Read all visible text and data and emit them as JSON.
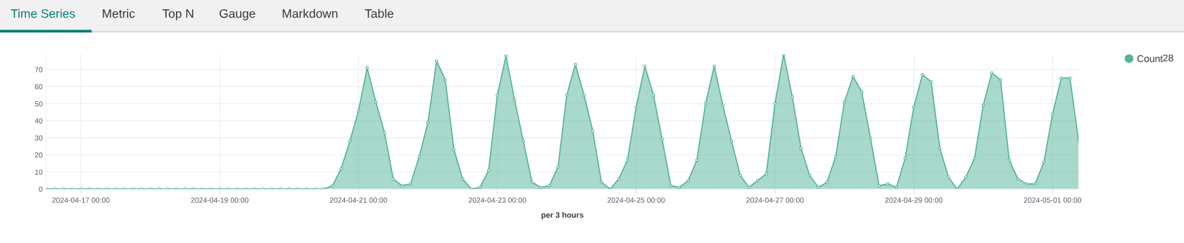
{
  "chart_data": {
    "type": "area",
    "annotations": [
      "Time Series",
      "Metric",
      "Top N",
      "Gauge",
      "Markdown",
      "Table",
      "28"
    ],
    "xlabel": "per 3 hours",
    "x": [
      "2024-04-16T12:00",
      "2024-04-16T15:00",
      "2024-04-16T18:00",
      "2024-04-16T21:00",
      "2024-04-17T00:00",
      "2024-04-17T03:00",
      "2024-04-17T06:00",
      "2024-04-17T09:00",
      "2024-04-17T12:00",
      "2024-04-17T15:00",
      "2024-04-17T18:00",
      "2024-04-17T21:00",
      "2024-04-18T00:00",
      "2024-04-18T03:00",
      "2024-04-18T06:00",
      "2024-04-18T09:00",
      "2024-04-18T12:00",
      "2024-04-18T15:00",
      "2024-04-18T18:00",
      "2024-04-18T21:00",
      "2024-04-19T00:00",
      "2024-04-19T03:00",
      "2024-04-19T06:00",
      "2024-04-19T09:00",
      "2024-04-19T12:00",
      "2024-04-19T15:00",
      "2024-04-19T18:00",
      "2024-04-19T21:00",
      "2024-04-20T00:00",
      "2024-04-20T03:00",
      "2024-04-20T06:00",
      "2024-04-20T09:00",
      "2024-04-20T12:00",
      "2024-04-20T15:00",
      "2024-04-20T18:00",
      "2024-04-20T21:00",
      "2024-04-21T00:00",
      "2024-04-21T03:00",
      "2024-04-21T06:00",
      "2024-04-21T09:00",
      "2024-04-21T12:00",
      "2024-04-21T15:00",
      "2024-04-21T18:00",
      "2024-04-21T21:00",
      "2024-04-22T00:00",
      "2024-04-22T03:00",
      "2024-04-22T06:00",
      "2024-04-22T09:00",
      "2024-04-22T12:00",
      "2024-04-22T15:00",
      "2024-04-22T18:00",
      "2024-04-22T21:00",
      "2024-04-23T00:00",
      "2024-04-23T03:00",
      "2024-04-23T06:00",
      "2024-04-23T09:00",
      "2024-04-23T12:00",
      "2024-04-23T15:00",
      "2024-04-23T18:00",
      "2024-04-23T21:00",
      "2024-04-24T00:00",
      "2024-04-24T03:00",
      "2024-04-24T06:00",
      "2024-04-24T09:00",
      "2024-04-24T12:00",
      "2024-04-24T15:00",
      "2024-04-24T18:00",
      "2024-04-24T21:00",
      "2024-04-25T00:00",
      "2024-04-25T03:00",
      "2024-04-25T06:00",
      "2024-04-25T09:00",
      "2024-04-25T12:00",
      "2024-04-25T15:00",
      "2024-04-25T18:00",
      "2024-04-25T21:00",
      "2024-04-26T00:00",
      "2024-04-26T03:00",
      "2024-04-26T06:00",
      "2024-04-26T09:00",
      "2024-04-26T12:00",
      "2024-04-26T15:00",
      "2024-04-26T18:00",
      "2024-04-26T21:00",
      "2024-04-27T00:00",
      "2024-04-27T03:00",
      "2024-04-27T06:00",
      "2024-04-27T09:00",
      "2024-04-27T12:00",
      "2024-04-27T15:00",
      "2024-04-27T18:00",
      "2024-04-27T21:00",
      "2024-04-28T00:00",
      "2024-04-28T03:00",
      "2024-04-28T06:00",
      "2024-04-28T09:00",
      "2024-04-28T12:00",
      "2024-04-28T15:00",
      "2024-04-28T18:00",
      "2024-04-28T21:00",
      "2024-04-29T00:00",
      "2024-04-29T03:00",
      "2024-04-29T06:00",
      "2024-04-29T09:00",
      "2024-04-29T12:00",
      "2024-04-29T15:00",
      "2024-04-29T18:00",
      "2024-04-29T21:00",
      "2024-04-30T00:00",
      "2024-04-30T03:00",
      "2024-04-30T06:00",
      "2024-04-30T09:00",
      "2024-04-30T12:00",
      "2024-04-30T15:00",
      "2024-04-30T18:00",
      "2024-04-30T21:00",
      "2024-05-01T00:00",
      "2024-05-01T03:00",
      "2024-05-01T06:00",
      "2024-05-01T09:00"
    ],
    "series": [
      {
        "name": "Count",
        "color": "#54b399",
        "values": [
          0,
          0,
          0,
          0,
          0,
          0,
          0,
          0,
          0,
          0,
          0,
          0,
          0,
          0,
          0,
          0,
          0,
          0,
          0,
          0,
          0,
          0,
          0,
          0,
          0,
          0,
          0,
          0,
          0,
          0,
          0,
          0,
          0,
          2,
          12,
          28,
          46,
          71,
          51,
          33,
          6,
          2,
          3,
          19,
          39,
          75,
          64,
          23,
          6,
          0,
          1,
          11,
          55,
          78,
          52,
          28,
          4,
          1,
          2,
          13,
          55,
          73,
          55,
          34,
          4,
          0,
          6,
          17,
          48,
          72,
          55,
          29,
          2,
          1,
          5,
          17,
          50,
          72,
          49,
          28,
          8,
          1,
          5,
          9,
          50,
          79,
          54,
          24,
          8,
          1,
          4,
          19,
          51,
          66,
          57,
          30,
          2,
          3,
          1,
          18,
          48,
          67,
          63,
          24,
          7,
          0,
          7,
          18,
          49,
          68,
          64,
          17,
          6,
          3,
          3,
          16,
          44,
          65,
          65,
          28
        ]
      }
    ],
    "xlim": [
      "2024-04-16T12:00",
      "2024-05-01T09:00"
    ],
    "xticks": [
      {
        "value": "2024-04-17T00:00",
        "label": "2024-04-17 00:00"
      },
      {
        "value": "2024-04-19T00:00",
        "label": "2024-04-19 00:00"
      },
      {
        "value": "2024-04-21T00:00",
        "label": "2024-04-21 00:00"
      },
      {
        "value": "2024-04-23T00:00",
        "label": "2024-04-23 00:00"
      },
      {
        "value": "2024-04-25T00:00",
        "label": "2024-04-25 00:00"
      },
      {
        "value": "2024-04-27T00:00",
        "label": "2024-04-27 00:00"
      },
      {
        "value": "2024-04-29T00:00",
        "label": "2024-04-29 00:00"
      },
      {
        "value": "2024-05-01T00:00",
        "label": "2024-05-01 00:00"
      }
    ],
    "ylim": [
      0,
      79
    ],
    "yticks": [
      0,
      10,
      20,
      30,
      40,
      50,
      60,
      70
    ],
    "grid": true,
    "legend": "top right",
    "marker": "circle",
    "line_style": "solid"
  }
}
